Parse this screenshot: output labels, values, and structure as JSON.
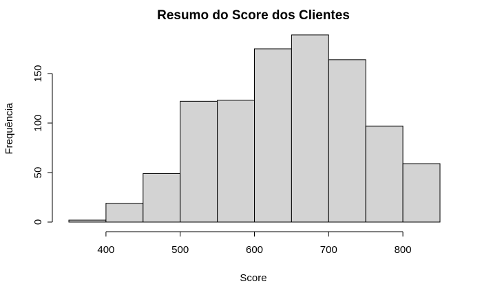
{
  "chart_data": {
    "type": "bar",
    "title": "Resumo do Score dos Clientes",
    "xlabel": "Score",
    "ylabel": "Frequência",
    "bin_edges": [
      350,
      400,
      450,
      500,
      550,
      600,
      650,
      700,
      750,
      800,
      850
    ],
    "values": [
      2,
      19,
      49,
      122,
      123,
      175,
      189,
      164,
      97,
      59
    ],
    "xlim": [
      350,
      850
    ],
    "ylim": [
      0,
      190
    ],
    "x_ticks": [
      400,
      500,
      600,
      700,
      800
    ],
    "y_ticks": [
      0,
      50,
      100,
      150
    ],
    "bar_color": "#d3d3d3",
    "grid": false,
    "legend": "none"
  }
}
